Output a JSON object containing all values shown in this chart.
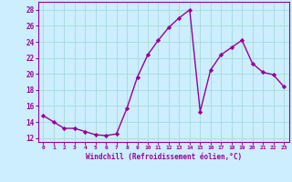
{
  "x": [
    0,
    1,
    2,
    3,
    4,
    5,
    6,
    7,
    8,
    9,
    10,
    11,
    12,
    13,
    14,
    15,
    16,
    17,
    18,
    19,
    20,
    21,
    22,
    23
  ],
  "y": [
    14.8,
    14.0,
    13.2,
    13.2,
    12.8,
    12.4,
    12.3,
    12.5,
    15.7,
    19.6,
    22.4,
    24.2,
    25.8,
    27.0,
    28.0,
    15.3,
    20.5,
    22.4,
    23.3,
    24.2,
    21.3,
    20.2,
    19.9,
    18.4
  ],
  "line_color": "#990099",
  "marker": "D",
  "marker_size": 2.2,
  "line_width": 1.0,
  "bg_color": "#cceeff",
  "grid_color": "#aadddd",
  "xlabel": "Windchill (Refroidissement éolien,°C)",
  "xlabel_color": "#990099",
  "tick_color": "#990099",
  "ylabel_ticks": [
    12,
    14,
    16,
    18,
    20,
    22,
    24,
    26,
    28
  ],
  "xlim": [
    -0.5,
    23.5
  ],
  "ylim": [
    11.5,
    29.0
  ],
  "xtick_labels": [
    "0",
    "1",
    "2",
    "3",
    "4",
    "5",
    "6",
    "7",
    "8",
    "9",
    "10",
    "11",
    "12",
    "13",
    "14",
    "15",
    "16",
    "17",
    "18",
    "19",
    "20",
    "21",
    "22",
    "23"
  ]
}
